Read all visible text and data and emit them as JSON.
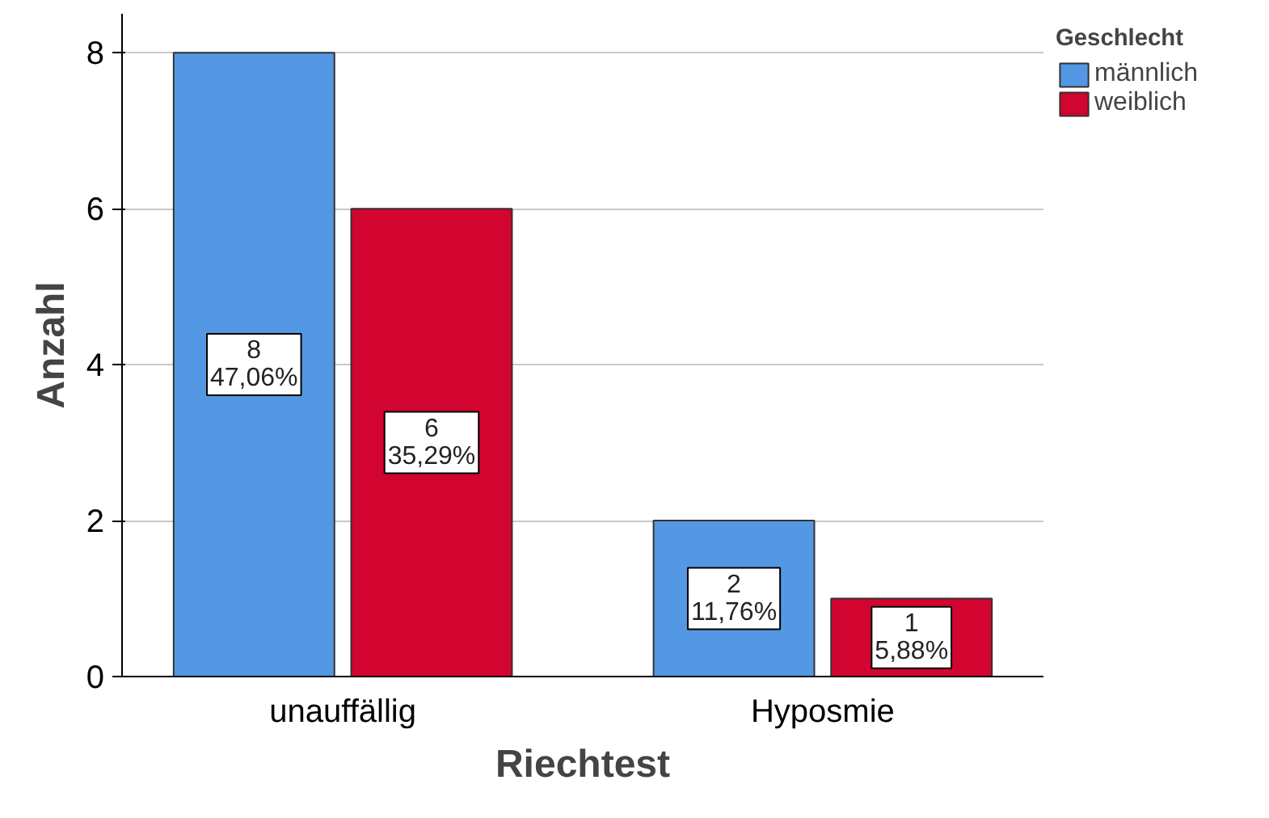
{
  "chart_data": {
    "type": "bar",
    "xlabel": "Riechtest",
    "ylabel": "Anzahl",
    "legend_title": "Geschlecht",
    "categories": [
      "unauffällig",
      "Hyposmie"
    ],
    "series": [
      {
        "name": "männlich",
        "color": "#5497e3",
        "values": [
          8,
          2
        ],
        "value_labels": [
          "8\n47,06%",
          "2\n11,76%"
        ]
      },
      {
        "name": "weiblich",
        "color": "#d20430",
        "values": [
          6,
          1
        ],
        "value_labels": [
          "6\n35,29%",
          "1\n5,88%"
        ]
      }
    ],
    "ylim": [
      0,
      8.5
    ],
    "yticks": [
      0,
      2,
      4,
      6,
      8
    ],
    "grid": "y",
    "legend": "top right"
  }
}
